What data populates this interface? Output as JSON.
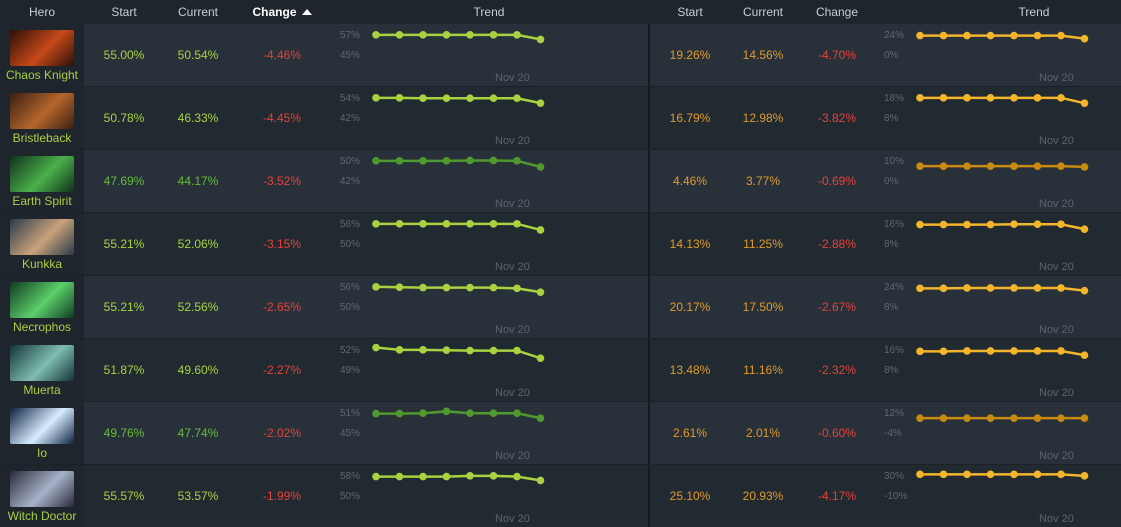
{
  "header": {
    "hero": "Hero",
    "start": "Start",
    "current": "Current",
    "change": "Change",
    "trend": "Trend",
    "start2": "Start",
    "current2": "Current",
    "change2": "Change",
    "trend2": "Trend"
  },
  "colors": {
    "win_light": "#a9d140",
    "win_dark": "#4f9a2e",
    "pick_light": "#f2b52b",
    "pick_dark": "#c88a10",
    "negative": "#e2433a"
  },
  "rows": [
    {
      "hero": "Chaos Knight",
      "portrait": "chaos-knight-portrait",
      "portrait_colors": [
        "#2b0f06",
        "#c6491a"
      ],
      "start": "55.00%",
      "current": "50.54%",
      "change": "-4.46%",
      "win_tone": "light",
      "win_ticks": [
        "57%",
        "45%"
      ],
      "win_trend": [
        0.82,
        0.82,
        0.82,
        0.82,
        0.82,
        0.82,
        0.82,
        0.7
      ],
      "date": "Nov 20",
      "pick_start": "19.26%",
      "pick_current": "14.56%",
      "pick_change": "-4.70%",
      "pick_tone": "light",
      "pick_ticks": [
        "24%",
        "0%"
      ],
      "pick_trend": [
        0.8,
        0.8,
        0.8,
        0.8,
        0.8,
        0.8,
        0.8,
        0.72
      ]
    },
    {
      "hero": "Bristleback",
      "portrait": "bristleback-portrait",
      "portrait_colors": [
        "#3a1f10",
        "#b5662c"
      ],
      "start": "50.78%",
      "current": "46.33%",
      "change": "-4.45%",
      "win_tone": "light",
      "win_ticks": [
        "54%",
        "42%"
      ],
      "win_trend": [
        0.82,
        0.82,
        0.81,
        0.81,
        0.81,
        0.81,
        0.81,
        0.68
      ],
      "date": "Nov 20",
      "pick_start": "16.79%",
      "pick_current": "12.98%",
      "pick_change": "-3.82%",
      "pick_tone": "light",
      "pick_ticks": [
        "18%",
        "8%"
      ],
      "pick_trend": [
        0.82,
        0.82,
        0.82,
        0.82,
        0.82,
        0.82,
        0.82,
        0.68
      ]
    },
    {
      "hero": "Earth Spirit",
      "portrait": "earth-spirit-portrait",
      "portrait_colors": [
        "#10301c",
        "#4bb04a"
      ],
      "start": "47.69%",
      "current": "44.17%",
      "change": "-3.52%",
      "win_tone": "dark",
      "win_ticks": [
        "50%",
        "42%"
      ],
      "win_trend": [
        0.82,
        0.82,
        0.82,
        0.82,
        0.83,
        0.83,
        0.82,
        0.66
      ],
      "date": "Nov 20",
      "pick_start": "4.46%",
      "pick_current": "3.77%",
      "pick_change": "-0.69%",
      "pick_tone": "dark",
      "pick_ticks": [
        "10%",
        "0%"
      ],
      "pick_trend": [
        0.68,
        0.68,
        0.68,
        0.68,
        0.68,
        0.68,
        0.68,
        0.66
      ]
    },
    {
      "hero": "Kunkka",
      "portrait": "kunkka-portrait",
      "portrait_colors": [
        "#2a3a4a",
        "#c9a27a"
      ],
      "start": "55.21%",
      "current": "52.06%",
      "change": "-3.15%",
      "win_tone": "light",
      "win_ticks": [
        "56%",
        "50%"
      ],
      "win_trend": [
        0.82,
        0.82,
        0.82,
        0.82,
        0.82,
        0.82,
        0.82,
        0.66
      ],
      "date": "Nov 20",
      "pick_start": "14.13%",
      "pick_current": "11.25%",
      "pick_change": "-2.88%",
      "pick_tone": "light",
      "pick_ticks": [
        "16%",
        "8%"
      ],
      "pick_trend": [
        0.8,
        0.8,
        0.8,
        0.8,
        0.81,
        0.81,
        0.81,
        0.68
      ]
    },
    {
      "hero": "Necrophos",
      "portrait": "necrophos-portrait",
      "portrait_colors": [
        "#0f3a22",
        "#5ccf6a"
      ],
      "start": "55.21%",
      "current": "52.56%",
      "change": "-2.65%",
      "win_tone": "light",
      "win_ticks": [
        "56%",
        "50%"
      ],
      "win_trend": [
        0.82,
        0.81,
        0.8,
        0.8,
        0.8,
        0.8,
        0.78,
        0.68
      ],
      "date": "Nov 20",
      "pick_start": "20.17%",
      "pick_current": "17.50%",
      "pick_change": "-2.67%",
      "pick_tone": "light",
      "pick_ticks": [
        "24%",
        "8%"
      ],
      "pick_trend": [
        0.78,
        0.78,
        0.79,
        0.79,
        0.79,
        0.79,
        0.79,
        0.72
      ]
    },
    {
      "hero": "Muerta",
      "portrait": "muerta-portrait",
      "portrait_colors": [
        "#123438",
        "#7fbcb0"
      ],
      "start": "51.87%",
      "current": "49.60%",
      "change": "-2.27%",
      "win_tone": "light",
      "win_ticks": [
        "52%",
        "49%"
      ],
      "win_trend": [
        0.88,
        0.82,
        0.82,
        0.81,
        0.8,
        0.8,
        0.8,
        0.6
      ],
      "date": "Nov 20",
      "pick_start": "13.48%",
      "pick_current": "11.16%",
      "pick_change": "-2.32%",
      "pick_tone": "light",
      "pick_ticks": [
        "16%",
        "8%"
      ],
      "pick_trend": [
        0.78,
        0.78,
        0.79,
        0.79,
        0.79,
        0.79,
        0.79,
        0.68
      ]
    },
    {
      "hero": "Io",
      "portrait": "io-portrait",
      "portrait_colors": [
        "#0d2240",
        "#d8ecff"
      ],
      "start": "49.76%",
      "current": "47.74%",
      "change": "-2.02%",
      "win_tone": "dark",
      "win_ticks": [
        "51%",
        "45%"
      ],
      "win_trend": [
        0.8,
        0.8,
        0.81,
        0.86,
        0.81,
        0.81,
        0.81,
        0.68
      ],
      "date": "Nov 20",
      "pick_start": "2.61%",
      "pick_current": "2.01%",
      "pick_change": "-0.60%",
      "pick_tone": "dark",
      "pick_ticks": [
        "12%",
        "-4%"
      ],
      "pick_trend": [
        0.68,
        0.68,
        0.68,
        0.68,
        0.68,
        0.68,
        0.68,
        0.68
      ]
    },
    {
      "hero": "Witch Doctor",
      "portrait": "witch-doctor-portrait",
      "portrait_colors": [
        "#2a2a3a",
        "#a6b2c8"
      ],
      "start": "55.57%",
      "current": "53.57%",
      "change": "-1.99%",
      "win_tone": "light",
      "win_ticks": [
        "58%",
        "50%"
      ],
      "win_trend": [
        0.8,
        0.8,
        0.8,
        0.8,
        0.82,
        0.82,
        0.8,
        0.7
      ],
      "date": "Nov 20",
      "pick_start": "25.10%",
      "pick_current": "20.93%",
      "pick_change": "-4.17%",
      "pick_tone": "light",
      "pick_ticks": [
        "30%",
        "-10%"
      ],
      "pick_trend": [
        0.86,
        0.86,
        0.86,
        0.86,
        0.86,
        0.86,
        0.86,
        0.82
      ]
    }
  ]
}
